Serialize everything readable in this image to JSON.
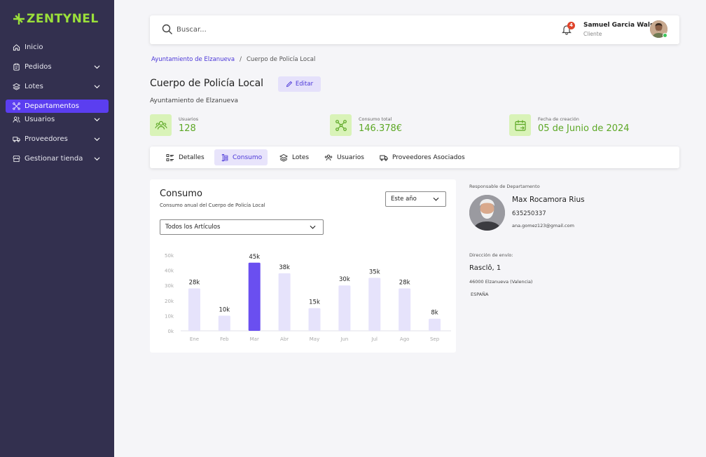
{
  "brand": {
    "name": "ZENTYNEL",
    "color": "#9be03a"
  },
  "sidebar": {
    "items": [
      {
        "label": "Inicio",
        "icon": "home-icon",
        "has_chevron": false,
        "active": false
      },
      {
        "label": "Pedidos",
        "icon": "clipboard-icon",
        "has_chevron": true,
        "active": false
      },
      {
        "label": "Lotes",
        "icon": "layers-icon",
        "has_chevron": true,
        "active": false
      },
      {
        "label": "Departamentos",
        "icon": "network-icon",
        "has_chevron": false,
        "active": true
      },
      {
        "label": "Usuarios",
        "icon": "users-icon",
        "has_chevron": true,
        "active": false
      },
      {
        "label": "Proveedores",
        "icon": "truck-icon",
        "has_chevron": true,
        "active": false
      },
      {
        "label": "Gestionar tienda",
        "icon": "store-icon",
        "has_chevron": true,
        "active": false
      }
    ]
  },
  "header": {
    "search_placeholder": "Buscar...",
    "notifications_count": "4",
    "user_name": "Samuel Garcia Walser",
    "user_role": "Cliente"
  },
  "breadcrumb": {
    "parent": "Ayuntamiento de Elzanueva",
    "separator": "/",
    "current": "Cuerpo de Policía Local"
  },
  "page": {
    "title": "Cuerpo de Policía Local",
    "edit_label": "Editar",
    "subtitle": "Ayuntamiento de Elzanueva"
  },
  "stats": [
    {
      "label": "Usuarios",
      "value": "128",
      "icon": "users-icon"
    },
    {
      "label": "Consumo total",
      "value": "146.378€",
      "icon": "network-icon"
    },
    {
      "label": "Fecha de creación",
      "value": "05 de Junio de 2024",
      "icon": "calendar-icon"
    }
  ],
  "tabs": [
    {
      "label": "Detalles",
      "icon": "list-icon",
      "active": false
    },
    {
      "label": "Consumo",
      "icon": "money-icon",
      "active": true
    },
    {
      "label": "Lotes",
      "icon": "layers-icon",
      "active": false
    },
    {
      "label": "Usuarios",
      "icon": "users-icon",
      "active": false
    },
    {
      "label": "Proveedores Asociados",
      "icon": "truck-icon",
      "active": false
    }
  ],
  "consumo": {
    "title": "Consumo",
    "subtitle": "Consumo anual del Cuerpo de Policía Local",
    "period_select": "Este año",
    "articles_select": "Todos los Artículos"
  },
  "chart_data": {
    "type": "bar",
    "categories": [
      "Ene",
      "Feb",
      "Mar",
      "Abr",
      "May",
      "Jun",
      "Jul",
      "Ago",
      "Sep"
    ],
    "values": [
      28000,
      10000,
      45000,
      38000,
      15000,
      30000,
      35000,
      28000,
      8000
    ],
    "data_labels": [
      "28k",
      "10k",
      "45k",
      "38k",
      "15k",
      "30k",
      "35k",
      "28k",
      "8k"
    ],
    "ytick_labels": [
      "0k",
      "10k",
      "20k",
      "30k",
      "40k",
      "50k"
    ],
    "ylim": [
      0,
      50000
    ],
    "highlight_index": 2,
    "bar_color": "#e6e3fb",
    "highlight_color": "#6a4ff0",
    "title": "",
    "xlabel": "",
    "ylabel": ""
  },
  "responsable": {
    "label": "Responsable de Departamento",
    "name": "Max Rocamora Rius",
    "phone": "635250337",
    "email": "ana.gomez123@gmail.com"
  },
  "direccion": {
    "label": "Dirección de envío:",
    "street": "Rasclô, 1",
    "city": "46000 Elzanueva (Valencia)",
    "country": "ESPAÑA"
  }
}
